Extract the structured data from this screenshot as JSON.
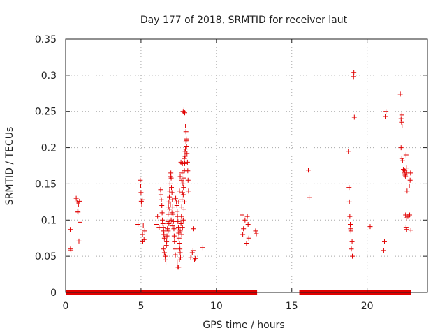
{
  "chart_data": {
    "type": "scatter",
    "title": "Day 177 of 2018, SRMTID for receiver laut",
    "xlabel": "GPS time / hours",
    "ylabel": "SRMTID / TECUs",
    "xlim": [
      0,
      24
    ],
    "ylim": [
      0,
      0.35
    ],
    "grid": true,
    "marker": "+",
    "color": "#e00000",
    "x_ticks": [
      0,
      5,
      10,
      15,
      20
    ],
    "x_tick_labels": [
      "0",
      "5",
      "10",
      "15",
      "20"
    ],
    "y_ticks": [
      0,
      0.05,
      0.1,
      0.15,
      0.2,
      0.25,
      0.3,
      0.35
    ],
    "y_tick_labels": [
      "0",
      "0.05",
      "0.1",
      "0.15",
      "0.2",
      "0.25",
      "0.3",
      "0.35"
    ],
    "zero_segments": [
      [
        0.0,
        12.7
      ],
      [
        15.5,
        22.9
      ]
    ],
    "points": [
      [
        0.3,
        0.087
      ],
      [
        0.32,
        0.06
      ],
      [
        0.35,
        0.058
      ],
      [
        0.7,
        0.13
      ],
      [
        0.75,
        0.125
      ],
      [
        0.8,
        0.112
      ],
      [
        0.82,
        0.111
      ],
      [
        0.85,
        0.122
      ],
      [
        0.88,
        0.071
      ],
      [
        0.92,
        0.126
      ],
      [
        0.95,
        0.097
      ],
      [
        4.8,
        0.094
      ],
      [
        4.95,
        0.155
      ],
      [
        4.98,
        0.147
      ],
      [
        5.0,
        0.138
      ],
      [
        5.02,
        0.126
      ],
      [
        5.05,
        0.122
      ],
      [
        5.08,
        0.128
      ],
      [
        5.1,
        0.08
      ],
      [
        5.12,
        0.07
      ],
      [
        5.15,
        0.093
      ],
      [
        5.2,
        0.073
      ],
      [
        5.25,
        0.085
      ],
      [
        6.0,
        0.094
      ],
      [
        6.1,
        0.105
      ],
      [
        6.2,
        0.09
      ],
      [
        6.3,
        0.142
      ],
      [
        6.32,
        0.135
      ],
      [
        6.35,
        0.128
      ],
      [
        6.38,
        0.12
      ],
      [
        6.4,
        0.11
      ],
      [
        6.42,
        0.1
      ],
      [
        6.45,
        0.095
      ],
      [
        6.48,
        0.09
      ],
      [
        6.5,
        0.085
      ],
      [
        6.52,
        0.08
      ],
      [
        6.55,
        0.075
      ],
      [
        6.5,
        0.06
      ],
      [
        6.55,
        0.055
      ],
      [
        6.6,
        0.05
      ],
      [
        6.62,
        0.045
      ],
      [
        6.65,
        0.042
      ],
      [
        6.68,
        0.065
      ],
      [
        6.7,
        0.07
      ],
      [
        6.72,
        0.078
      ],
      [
        6.75,
        0.088
      ],
      [
        6.78,
        0.098
      ],
      [
        6.8,
        0.108
      ],
      [
        6.82,
        0.118
      ],
      [
        6.85,
        0.125
      ],
      [
        6.88,
        0.132
      ],
      [
        6.9,
        0.14
      ],
      [
        6.92,
        0.15
      ],
      [
        6.95,
        0.16
      ],
      [
        6.98,
        0.165
      ],
      [
        7.0,
        0.158
      ],
      [
        7.02,
        0.145
      ],
      [
        7.05,
        0.138
      ],
      [
        7.08,
        0.128
      ],
      [
        7.1,
        0.118
      ],
      [
        7.12,
        0.108
      ],
      [
        7.15,
        0.098
      ],
      [
        7.18,
        0.088
      ],
      [
        7.2,
        0.078
      ],
      [
        7.22,
        0.07
      ],
      [
        7.25,
        0.06
      ],
      [
        7.28,
        0.052
      ],
      [
        6.95,
        0.122
      ],
      [
        6.9,
        0.115
      ],
      [
        6.85,
        0.095
      ],
      [
        6.8,
        0.085
      ],
      [
        7.0,
        0.1
      ],
      [
        7.05,
        0.11
      ],
      [
        7.1,
        0.092
      ],
      [
        7.3,
        0.13
      ],
      [
        7.35,
        0.125
      ],
      [
        7.38,
        0.12
      ],
      [
        7.4,
        0.112
      ],
      [
        7.42,
        0.105
      ],
      [
        7.45,
        0.098
      ],
      [
        7.48,
        0.09
      ],
      [
        7.5,
        0.082
      ],
      [
        7.52,
        0.075
      ],
      [
        7.55,
        0.068
      ],
      [
        7.58,
        0.06
      ],
      [
        7.6,
        0.055
      ],
      [
        7.62,
        0.048
      ],
      [
        7.4,
        0.042
      ],
      [
        7.45,
        0.035
      ],
      [
        7.5,
        0.035
      ],
      [
        7.55,
        0.045
      ],
      [
        7.6,
        0.085
      ],
      [
        7.65,
        0.095
      ],
      [
        7.68,
        0.105
      ],
      [
        7.7,
        0.118
      ],
      [
        7.72,
        0.128
      ],
      [
        7.75,
        0.138
      ],
      [
        7.78,
        0.15
      ],
      [
        7.7,
        0.155
      ],
      [
        7.72,
        0.165
      ],
      [
        7.75,
        0.178
      ],
      [
        7.65,
        0.18
      ],
      [
        7.6,
        0.16
      ],
      [
        7.55,
        0.14
      ],
      [
        7.5,
        0.125
      ],
      [
        7.8,
        0.135
      ],
      [
        7.82,
        0.145
      ],
      [
        7.85,
        0.158
      ],
      [
        7.88,
        0.168
      ],
      [
        7.9,
        0.178
      ],
      [
        7.92,
        0.188
      ],
      [
        7.95,
        0.198
      ],
      [
        7.98,
        0.208
      ],
      [
        8.0,
        0.212
      ],
      [
        8.02,
        0.202
      ],
      [
        8.05,
        0.192
      ],
      [
        8.08,
        0.18
      ],
      [
        8.1,
        0.168
      ],
      [
        8.12,
        0.155
      ],
      [
        8.15,
        0.14
      ],
      [
        7.9,
        0.125
      ],
      [
        7.85,
        0.115
      ],
      [
        7.8,
        0.1
      ],
      [
        7.75,
        0.09
      ],
      [
        7.7,
        0.08
      ],
      [
        7.8,
        0.25
      ],
      [
        7.85,
        0.252
      ],
      [
        7.9,
        0.248
      ],
      [
        7.95,
        0.23
      ],
      [
        7.98,
        0.222
      ],
      [
        8.0,
        0.21
      ],
      [
        7.92,
        0.195
      ],
      [
        7.88,
        0.185
      ],
      [
        8.3,
        0.048
      ],
      [
        8.4,
        0.055
      ],
      [
        8.45,
        0.058
      ],
      [
        8.5,
        0.088
      ],
      [
        8.55,
        0.045
      ],
      [
        8.6,
        0.047
      ],
      [
        9.1,
        0.062
      ],
      [
        11.7,
        0.107
      ],
      [
        11.75,
        0.08
      ],
      [
        11.8,
        0.088
      ],
      [
        11.9,
        0.1
      ],
      [
        12.0,
        0.068
      ],
      [
        12.05,
        0.105
      ],
      [
        12.1,
        0.094
      ],
      [
        12.15,
        0.075
      ],
      [
        12.6,
        0.085
      ],
      [
        12.65,
        0.081
      ],
      [
        16.1,
        0.169
      ],
      [
        16.15,
        0.131
      ],
      [
        18.75,
        0.195
      ],
      [
        18.8,
        0.145
      ],
      [
        18.82,
        0.125
      ],
      [
        18.85,
        0.105
      ],
      [
        18.88,
        0.094
      ],
      [
        18.9,
        0.088
      ],
      [
        18.92,
        0.085
      ],
      [
        18.95,
        0.06
      ],
      [
        19.0,
        0.07
      ],
      [
        19.02,
        0.05
      ],
      [
        19.1,
        0.298
      ],
      [
        19.12,
        0.304
      ],
      [
        19.15,
        0.242
      ],
      [
        20.2,
        0.091
      ],
      [
        21.1,
        0.058
      ],
      [
        21.15,
        0.07
      ],
      [
        21.2,
        0.243
      ],
      [
        21.25,
        0.25
      ],
      [
        22.2,
        0.274
      ],
      [
        22.25,
        0.24
      ],
      [
        22.28,
        0.235
      ],
      [
        22.3,
        0.245
      ],
      [
        22.32,
        0.23
      ],
      [
        22.25,
        0.2
      ],
      [
        22.3,
        0.185
      ],
      [
        22.35,
        0.182
      ],
      [
        22.4,
        0.17
      ],
      [
        22.45,
        0.165
      ],
      [
        22.5,
        0.168
      ],
      [
        22.52,
        0.162
      ],
      [
        22.55,
        0.16
      ],
      [
        22.58,
        0.19
      ],
      [
        22.6,
        0.172
      ],
      [
        22.62,
        0.165
      ],
      [
        22.65,
        0.14
      ],
      [
        22.55,
        0.107
      ],
      [
        22.6,
        0.103
      ],
      [
        22.58,
        0.09
      ],
      [
        22.62,
        0.087
      ],
      [
        22.8,
        0.147
      ],
      [
        22.85,
        0.155
      ],
      [
        22.88,
        0.165
      ],
      [
        22.9,
        0.086
      ],
      [
        22.82,
        0.107
      ],
      [
        22.7,
        0.105
      ]
    ]
  }
}
